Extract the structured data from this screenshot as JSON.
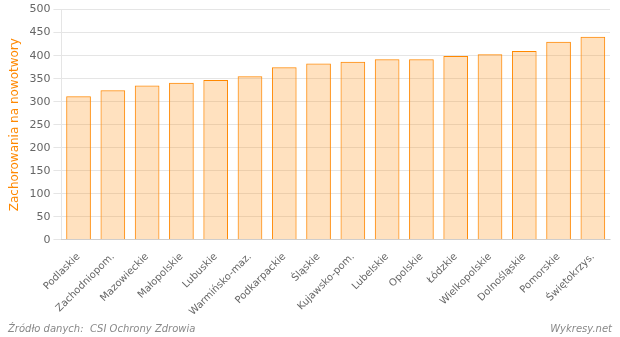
{
  "chart_data": {
    "type": "bar",
    "ylabel": "Zachorowania na nowotwory",
    "annotations": [
      "Źródło danych:  CSI Ochrony Zdrowia",
      "Wykresy.net"
    ],
    "categories": [
      "Podlaskie",
      "Zachodniopom.",
      "Mazowieckie",
      "Małopolskie",
      "Lubuskie",
      "Warmińsko-maz.",
      "Podkarpackie",
      "Śląskie",
      "Kujawsko-pom.",
      "Lubelskie",
      "Opolskie",
      "Łódzkie",
      "Wielkopolskie",
      "Dolnośląskie",
      "Pomorskie",
      "Świętokrzys."
    ],
    "values": [
      312,
      325,
      335,
      341,
      347,
      355,
      375,
      383,
      387,
      392,
      392,
      399,
      403,
      410,
      430,
      441
    ],
    "color": "#FF8800",
    "ylim": [
      0,
      500
    ],
    "yticks": [
      0,
      50,
      100,
      150,
      200,
      250,
      300,
      350,
      400,
      450,
      500
    ],
    "grid": true
  }
}
